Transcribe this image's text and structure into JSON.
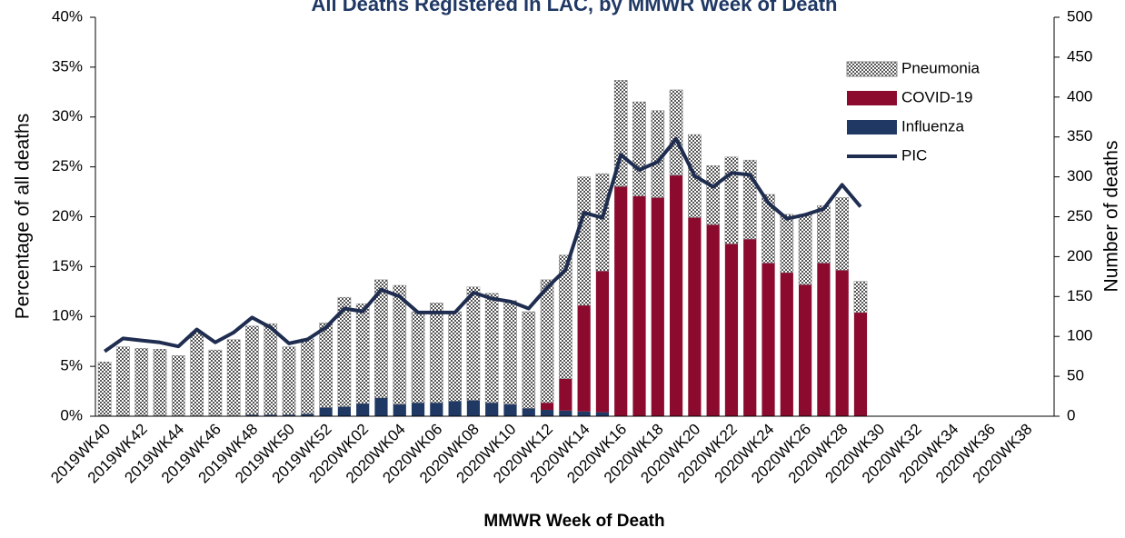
{
  "chart_data": {
    "type": "bar",
    "title": "All Deaths Registered in LAC, by MMWR Week of Death",
    "xlabel": "MMWR Week of Death",
    "ylabel": "Percentage of all deaths",
    "y2label": "Number of deaths",
    "categories": [
      "2019WK40",
      null,
      "2019WK42",
      null,
      "2019WK44",
      null,
      "2019WK46",
      null,
      "2019WK48",
      null,
      "2019WK50",
      null,
      "2019WK52",
      null,
      "2020WK02",
      null,
      "2020WK04",
      null,
      "2020WK06",
      null,
      "2020WK08",
      null,
      "2020WK10",
      null,
      "2020WK12",
      null,
      "2020WK14",
      null,
      "2020WK16",
      null,
      "2020WK18",
      null,
      "2020WK20",
      null,
      "2020WK22",
      null,
      "2020WK24",
      null,
      "2020WK26",
      null,
      "2020WK28",
      null,
      "2020WK30",
      null,
      "2020WK32",
      null,
      "2020WK34",
      null,
      "2020WK36",
      null,
      "2020WK38",
      null
    ],
    "ylim": [
      0,
      40
    ],
    "yticks": [
      {
        "value": 0,
        "label": "0%"
      },
      {
        "value": 5,
        "label": "5%"
      },
      {
        "value": 10,
        "label": "10%"
      },
      {
        "value": 15,
        "label": "15%"
      },
      {
        "value": 20,
        "label": "20%"
      },
      {
        "value": 25,
        "label": "25%"
      },
      {
        "value": 30,
        "label": "30%"
      },
      {
        "value": 35,
        "label": "35%"
      },
      {
        "value": 40,
        "label": "40%"
      }
    ],
    "y2lim": [
      0,
      500
    ],
    "y2ticks": [
      0,
      50,
      100,
      150,
      200,
      250,
      300,
      350,
      400,
      450,
      500
    ],
    "legend": "upper right",
    "series": [
      {
        "name": "Influenza",
        "type": "bar",
        "axis": "y2",
        "color": "#1f3864",
        "values": [
          1,
          1,
          1,
          1,
          1,
          1,
          1,
          1,
          2,
          2,
          2,
          3,
          11,
          12,
          16,
          23,
          15,
          17,
          17,
          19,
          20,
          17,
          15,
          10,
          8,
          7,
          6,
          5,
          0,
          0,
          0,
          0,
          0,
          0,
          0,
          0,
          0,
          0,
          0,
          0,
          0,
          0,
          null,
          null,
          null,
          null,
          null,
          null,
          null,
          null,
          null,
          null
        ]
      },
      {
        "name": "COVID-19",
        "type": "bar",
        "axis": "y2",
        "color": "#8b0a2e",
        "values": [
          0,
          0,
          0,
          0,
          0,
          0,
          0,
          0,
          0,
          0,
          0,
          0,
          0,
          0,
          0,
          0,
          0,
          0,
          0,
          0,
          0,
          0,
          0,
          0,
          9,
          40,
          133,
          177,
          288,
          276,
          274,
          302,
          249,
          240,
          216,
          222,
          192,
          180,
          165,
          192,
          183,
          130,
          null,
          null,
          null,
          null,
          null,
          null,
          null,
          null,
          null,
          null
        ]
      },
      {
        "name": "Pneumonia",
        "type": "bar",
        "axis": "y2",
        "color": "#1f1f1f",
        "pattern": "checker",
        "values": [
          67,
          86,
          84,
          83,
          75,
          104,
          82,
          95,
          111,
          114,
          85,
          94,
          106,
          137,
          125,
          148,
          149,
          114,
          125,
          112,
          142,
          137,
          130,
          121,
          154,
          155,
          161,
          122,
          133,
          118,
          109,
          107,
          104,
          74,
          109,
          99,
          86,
          73,
          88,
          72,
          91,
          39,
          null,
          null,
          null,
          null,
          null,
          null,
          null,
          null,
          null,
          null
        ]
      },
      {
        "name": "PIC",
        "type": "line",
        "color": "#1f2d50",
        "values": [
          6.5,
          7.8,
          7.6,
          7.4,
          7.0,
          8.7,
          7.4,
          8.4,
          9.9,
          8.9,
          7.3,
          7.7,
          8.9,
          10.8,
          10.5,
          12.7,
          12.0,
          10.4,
          10.4,
          10.4,
          12.4,
          11.8,
          11.5,
          10.8,
          12.9,
          14.7,
          20.4,
          19.9,
          26.2,
          24.7,
          25.5,
          27.8,
          24.1,
          23.0,
          24.4,
          24.2,
          21.4,
          19.8,
          20.2,
          20.8,
          23.2,
          21.0,
          null,
          null,
          null,
          null,
          null,
          null,
          null,
          null,
          null,
          null
        ]
      }
    ]
  }
}
